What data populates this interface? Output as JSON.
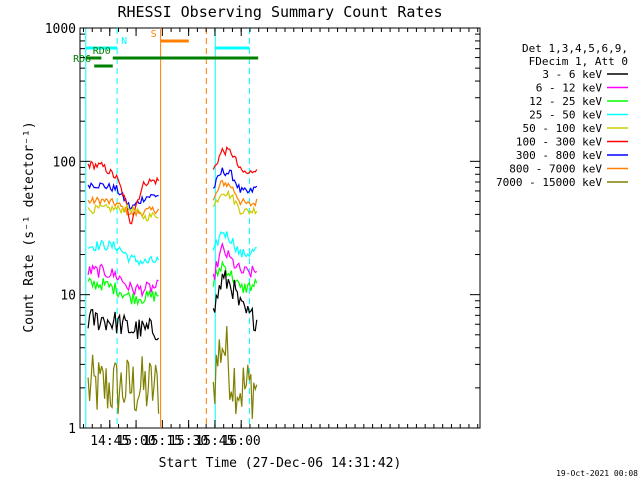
{
  "chart_data": {
    "type": "line",
    "title": "RHESSI Observing Summary Count Rates",
    "xlabel": "Start Time (27-Dec-06 14:31:42)",
    "ylabel": "Count Rate (s⁻¹ detector⁻¹)",
    "x_unit": "minutes from 14:31:42",
    "xlim": [
      -3.7,
      224.6
    ],
    "ylim": [
      1,
      1000
    ],
    "yscale": "log",
    "x_ticks": [
      {
        "label": "14:45",
        "value": 13.3
      },
      {
        "label": "15:00",
        "value": 28.3
      },
      {
        "label": "15:15",
        "value": 43.3
      },
      {
        "label": "15:30",
        "value": 58.3
      },
      {
        "label": "15:45",
        "value": 73.3
      },
      {
        "label": "16:00",
        "value": 88.3
      }
    ],
    "y_ticks": [
      {
        "label": "1",
        "value": 1
      },
      {
        "label": "10",
        "value": 10
      },
      {
        "label": "100",
        "value": 100
      },
      {
        "label": "1000",
        "value": 1000
      }
    ],
    "legend_header": [
      "Det 1,3,4,5,6,9,",
      "FDecim 1, Att 0"
    ],
    "legend_position": "right",
    "footer_date": "19-Oct-2021 00:08",
    "segments": [
      [
        0.9,
        41.5
      ],
      [
        72.4,
        98.0
      ]
    ],
    "series": [
      {
        "name": "3 - 6 keV",
        "color": "#000000",
        "values": [
          6.5,
          6.5,
          6.2,
          5.5,
          5.4,
          5.5,
          7.0,
          13.0,
          12.0,
          8.0,
          6.8,
          6.5
        ],
        "noise": 0.09
      },
      {
        "name": "6 - 12 keV",
        "color": "#ff00ff",
        "values": [
          15.0,
          15.0,
          14.0,
          11.0,
          11.0,
          11.5,
          13.0,
          22.0,
          18.0,
          15.0,
          14.5,
          15.0
        ],
        "noise": 0.05
      },
      {
        "name": "12 - 25 keV",
        "color": "#00ff00",
        "values": [
          12.0,
          12.0,
          11.0,
          9.5,
          9.5,
          10.0,
          12.0,
          17.0,
          14.0,
          11.0,
          11.5,
          12.0
        ],
        "noise": 0.05
      },
      {
        "name": "25 - 50 keV",
        "color": "#00ffff",
        "values": [
          23.0,
          23.5,
          23.0,
          18.5,
          17.5,
          18.0,
          20.0,
          30.0,
          26.0,
          20.0,
          20.5,
          22.0
        ],
        "noise": 0.04
      },
      {
        "name": "50 - 100 keV",
        "color": "#cccc00",
        "values": [
          43.0,
          44.5,
          44.0,
          44.0,
          38.0,
          40.0,
          45.0,
          60.0,
          55.0,
          43.0,
          42.0,
          44.0
        ],
        "noise": 0.03
      },
      {
        "name": "100 - 300 keV",
        "color": "#ff0000",
        "values": [
          95.0,
          92.0,
          75.0,
          34.0,
          70.0,
          72.0,
          85.0,
          120.0,
          118.0,
          85.0,
          80.0,
          93.0
        ],
        "noise": 0.03
      },
      {
        "name": "300 - 800 keV",
        "color": "#0000ff",
        "values": [
          68.0,
          66.0,
          62.0,
          44.0,
          54.0,
          56.0,
          62.0,
          85.0,
          80.0,
          60.0,
          58.0,
          65.0
        ],
        "noise": 0.03
      },
      {
        "name": "800 - 7000 keV",
        "color": "#ff8000",
        "values": [
          50.0,
          51.0,
          48.0,
          40.0,
          42.0,
          44.0,
          50.0,
          70.0,
          65.0,
          50.0,
          47.0,
          50.0
        ],
        "noise": 0.03
      },
      {
        "name": "7000 - 15000 keV",
        "color": "#808000",
        "values": [
          2.0,
          2.0,
          2.0,
          2.0,
          2.0,
          2.0,
          2.0,
          4.5,
          2.5,
          2.0,
          2.0,
          2.1
        ],
        "noise": 0.25
      }
    ],
    "flag_bars": [
      {
        "label": "N",
        "color": "#00ffff",
        "y_rank": 1,
        "ranges": [
          [
            -0.4,
            17.5
          ],
          [
            73.5,
            93.0
          ]
        ]
      },
      {
        "label": "S",
        "color": "#ff8000",
        "y_rank": 0,
        "ranges": [
          [
            42.3,
            58.4
          ]
        ]
      },
      {
        "label": "RD0",
        "color": "#008000",
        "y_rank": 2,
        "ranges": [
          [
            -0.4,
            8.5
          ],
          [
            15.0,
            98.0
          ]
        ]
      },
      {
        "label": "RD6",
        "color": "#008000",
        "y_rank": 3,
        "ranges": [
          [
            4.4,
            15.0
          ]
        ]
      }
    ],
    "vertical_markers": [
      {
        "color": "#00ffff",
        "style": "solid",
        "x": -0.4
      },
      {
        "color": "#00ffff",
        "style": "dashed",
        "x": 17.5
      },
      {
        "color": "#ff8000",
        "style": "solid",
        "x": 42.3
      },
      {
        "color": "#ff8000",
        "style": "dashed",
        "x": 68.4
      },
      {
        "color": "#00ffff",
        "style": "solid",
        "x": 73.5
      },
      {
        "color": "#00ffff",
        "style": "dashed",
        "x": 93.0
      }
    ]
  }
}
